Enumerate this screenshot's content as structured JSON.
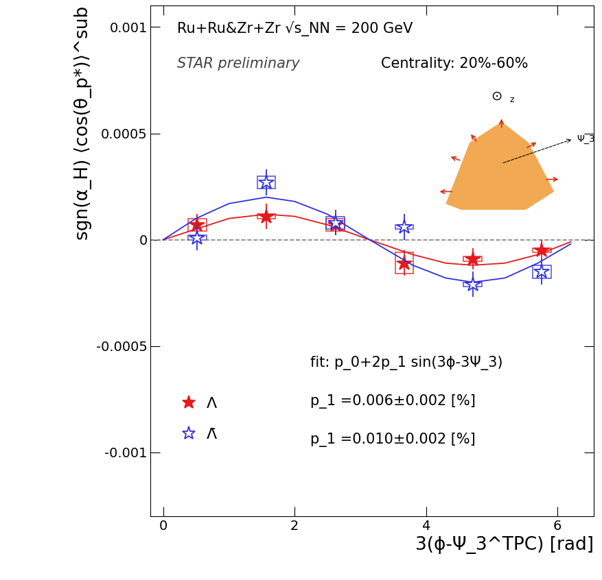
{
  "chart_data": {
    "type": "scatter",
    "texts": [
      "Ru+Ru&Zr+Zr √s_NN = 200 GeV",
      "STAR preliminary",
      "Centrality: 20%-60%",
      "fit: p_0+2p_1 sin(3ϕ-3Ψ_3)"
    ],
    "x_label": "3(ϕ-Ψ_3^TPC) [rad]",
    "y_label": "sgn(α_H) ⟨cos(θ_p*)⟩^sub",
    "xlim": [
      -0.19,
      6.55
    ],
    "ylim": [
      -0.0013,
      0.0011
    ],
    "xticks": [
      0,
      2,
      4,
      6
    ],
    "yticks": [
      -0.001,
      -0.0005,
      0,
      0.0005,
      0.001
    ],
    "reference_line": 0,
    "legend": "lower left",
    "inset_labels": [
      "⊙",
      "z",
      "Ψ_3"
    ],
    "series": [
      {
        "name": "Λ",
        "color": "#e41a1c",
        "marker": "filled_star",
        "x": [
          0.52,
          1.57,
          2.62,
          3.67,
          4.71,
          5.76
        ],
        "values": [
          7e-05,
          0.00011,
          7e-05,
          -0.00011,
          -9e-05,
          -5e-05
        ],
        "errors": [
          5e-05,
          6e-05,
          5e-05,
          6e-05,
          5e-05,
          5e-05
        ],
        "sys_errors": [
          3e-05,
          1e-05,
          3e-05,
          5e-05,
          1e-05,
          1e-05
        ],
        "fit_label": "p_1 =0.006±0.002 [%]",
        "fit_x": [
          0,
          0.5,
          1.0,
          1.57,
          2.0,
          2.5,
          3.14,
          3.8,
          4.3,
          4.71,
          5.2,
          5.7,
          6.2
        ],
        "fit_values": [
          0,
          5e-05,
          0.0001,
          0.00012,
          0.00011,
          7e-05,
          0,
          -7e-05,
          -0.00011,
          -0.00012,
          -0.00011,
          -7e-05,
          -1e-05
        ]
      },
      {
        "name": "Λ̄",
        "color": "#3030e0",
        "marker": "open_star",
        "x": [
          0.52,
          1.57,
          2.62,
          3.67,
          4.71,
          5.76
        ],
        "values": [
          1e-05,
          0.00027,
          8e-05,
          6e-05,
          -0.00021,
          -0.00015
        ],
        "errors": [
          6e-05,
          6e-05,
          6e-05,
          6e-05,
          6e-05,
          6e-05
        ],
        "sys_errors": [
          1e-05,
          3e-05,
          3e-05,
          1e-05,
          1e-05,
          3e-05
        ],
        "fit_label": "p_1 =0.010±0.002 [%]",
        "fit_x": [
          0,
          0.5,
          1.0,
          1.57,
          2.0,
          2.5,
          3.14,
          3.8,
          4.3,
          4.71,
          5.2,
          5.7,
          6.2
        ],
        "fit_values": [
          0,
          0.0001,
          0.00017,
          0.0002,
          0.00018,
          0.00012,
          0,
          -0.00012,
          -0.00018,
          -0.0002,
          -0.00018,
          -0.00011,
          -2e-05
        ]
      }
    ]
  }
}
